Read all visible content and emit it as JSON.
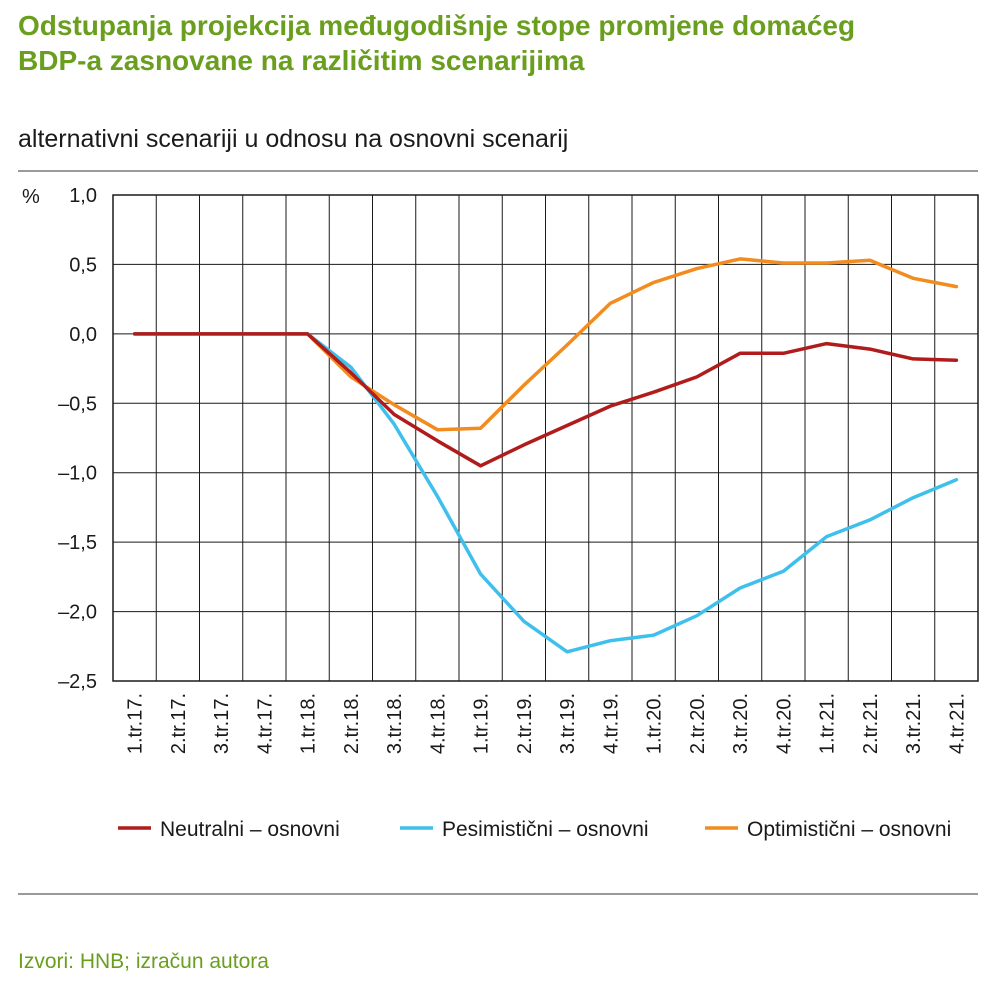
{
  "header": {
    "title": "Odstupanja projekcija međugodišnje stope promjene domaćeg BDP-a zasnovane na različitim scenarijima",
    "subtitle": "alternativni scenariji u odnosu na osnovni scenarij"
  },
  "footer": {
    "source": "Izvori: HNB; izračun autora"
  },
  "colors": {
    "title": "#6a9e1f",
    "neutral": "#b01c1c",
    "pessimistic": "#3fc0ec",
    "optimistic": "#f28c1e"
  },
  "chart_data": {
    "type": "line",
    "unit_label": "%",
    "ylim": [
      -2.5,
      1.0
    ],
    "yticks": [
      1.0,
      0.5,
      0.0,
      -0.5,
      -1.0,
      -1.5,
      -2.0,
      -2.5
    ],
    "ytick_labels": [
      "1,0",
      "0,5",
      "0,0",
      "–0,5",
      "–1,0",
      "–1,5",
      "–2,0",
      "–2,5"
    ],
    "grid": true,
    "legend_position": "bottom",
    "categories": [
      "1.tr.17.",
      "2.tr.17.",
      "3.tr.17.",
      "4.tr.17.",
      "1.tr.18.",
      "2.tr.18.",
      "3.tr.18.",
      "4.tr.18.",
      "1.tr.19.",
      "2.tr.19.",
      "3.tr.19.",
      "4.tr.19.",
      "1.tr.20.",
      "2.tr.20.",
      "3.tr.20.",
      "4.tr.20.",
      "1.tr.21.",
      "2.tr.21.",
      "3.tr.21.",
      "4.tr.21."
    ],
    "series": [
      {
        "name": "Neutralni – osnovni",
        "color": "#b01c1c",
        "values": [
          0,
          0,
          0,
          0,
          0,
          -0.28,
          -0.58,
          -0.77,
          -0.95,
          -0.8,
          -0.66,
          -0.52,
          -0.42,
          -0.31,
          -0.14,
          -0.14,
          -0.07,
          -0.11,
          -0.18,
          -0.19
        ]
      },
      {
        "name": "Pesimistični – osnovni",
        "color": "#3fc0ec",
        "values": [
          0,
          0,
          0,
          0,
          0,
          -0.24,
          -0.65,
          -1.17,
          -1.73,
          -2.07,
          -2.29,
          -2.21,
          -2.17,
          -2.03,
          -1.83,
          -1.71,
          -1.46,
          -1.34,
          -1.18,
          -1.05
        ]
      },
      {
        "name": "Optimistični – osnovni",
        "color": "#f28c1e",
        "values": [
          0,
          0,
          0,
          0,
          0,
          -0.31,
          -0.51,
          -0.69,
          -0.68,
          -0.37,
          -0.08,
          0.22,
          0.37,
          0.47,
          0.54,
          0.51,
          0.51,
          0.53,
          0.4,
          0.34
        ]
      }
    ]
  }
}
